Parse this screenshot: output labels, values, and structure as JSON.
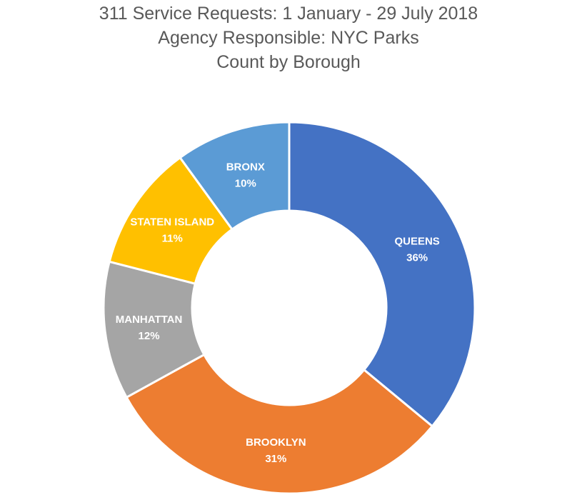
{
  "chart_data": {
    "type": "pie",
    "variant": "donut",
    "title": [
      "311 Service Requests: 1 January - 29 July 2018",
      "Agency Responsible: NYC Parks",
      "Count by Borough"
    ],
    "unit": "%",
    "categories": [
      "QUEENS",
      "BROOKLYN",
      "MANHATTAN",
      "STATEN ISLAND",
      "BRONX"
    ],
    "values": [
      36,
      31,
      12,
      11,
      10
    ],
    "colors": [
      "#4472C4",
      "#ED7D31",
      "#A5A5A5",
      "#FFC000",
      "#5B9BD5"
    ],
    "legend": "none"
  }
}
